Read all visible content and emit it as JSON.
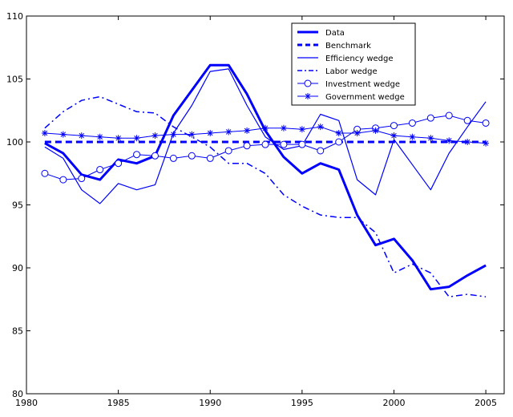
{
  "chart_data": {
    "type": "line",
    "title": "",
    "xlabel": "",
    "ylabel": "",
    "xlim": [
      1980,
      2006
    ],
    "ylim": [
      80,
      110
    ],
    "xticks": [
      1980,
      1985,
      1990,
      1995,
      2000,
      2005
    ],
    "yticks": [
      80,
      85,
      90,
      95,
      100,
      105,
      110
    ],
    "grid": false,
    "legend_position": "top-right",
    "x": [
      1981,
      1982,
      1983,
      1984,
      1985,
      1986,
      1987,
      1988,
      1989,
      1990,
      1991,
      1992,
      1993,
      1994,
      1995,
      1996,
      1997,
      1998,
      1999,
      2000,
      2001,
      2002,
      2003,
      2004,
      2005
    ],
    "series": [
      {
        "name": "Data",
        "color": "#0000ff",
        "style": "thick-solid",
        "values": [
          99.9,
          99.1,
          97.4,
          97.0,
          98.6,
          98.3,
          98.9,
          102.1,
          104.1,
          106.1,
          106.1,
          103.8,
          100.9,
          98.8,
          97.5,
          98.3,
          97.8,
          94.2,
          91.8,
          92.3,
          90.6,
          88.3,
          88.5,
          89.4,
          90.2
        ]
      },
      {
        "name": "Benchmark",
        "color": "#0000ff",
        "style": "thick-dashed",
        "values": [
          100,
          100,
          100,
          100,
          100,
          100,
          100,
          100,
          100,
          100,
          100,
          100,
          100,
          100,
          100,
          100,
          100,
          100,
          100,
          100,
          100,
          100,
          100,
          100,
          100
        ]
      },
      {
        "name": "Efficiency wedge",
        "color": "#0000ff",
        "style": "thin-solid",
        "values": [
          99.6,
          98.7,
          96.2,
          95.1,
          96.7,
          96.2,
          96.6,
          100.7,
          102.9,
          105.6,
          105.8,
          102.9,
          100.4,
          99.4,
          99.7,
          102.2,
          101.7,
          97.0,
          95.8,
          100.2,
          98.2,
          96.2,
          99.1,
          101.2,
          103.2
        ]
      },
      {
        "name": "Labor wedge",
        "color": "#0000ff",
        "style": "dash-dot",
        "values": [
          101.1,
          102.4,
          103.3,
          103.6,
          103.0,
          102.4,
          102.3,
          101.2,
          100.4,
          99.6,
          98.3,
          98.3,
          97.5,
          95.8,
          94.9,
          94.2,
          94.0,
          94.0,
          92.8,
          89.6,
          90.3,
          89.6,
          87.7,
          87.9,
          87.7
        ]
      },
      {
        "name": "Investment wedge",
        "color": "#0000ff",
        "style": "thin-circle",
        "values": [
          97.5,
          97.0,
          97.1,
          97.8,
          98.3,
          99.0,
          98.9,
          98.7,
          98.9,
          98.7,
          99.3,
          99.7,
          99.8,
          99.8,
          99.8,
          99.3,
          100.0,
          101.0,
          101.1,
          101.3,
          101.5,
          101.9,
          102.1,
          101.7,
          101.5
        ]
      },
      {
        "name": "Government wedge",
        "color": "#0000ff",
        "style": "thin-star",
        "values": [
          100.7,
          100.6,
          100.5,
          100.4,
          100.3,
          100.3,
          100.5,
          100.6,
          100.6,
          100.7,
          100.8,
          100.9,
          101.1,
          101.1,
          101.0,
          101.2,
          100.7,
          100.7,
          100.9,
          100.5,
          100.4,
          100.3,
          100.1,
          100.0,
          99.9
        ]
      }
    ]
  }
}
